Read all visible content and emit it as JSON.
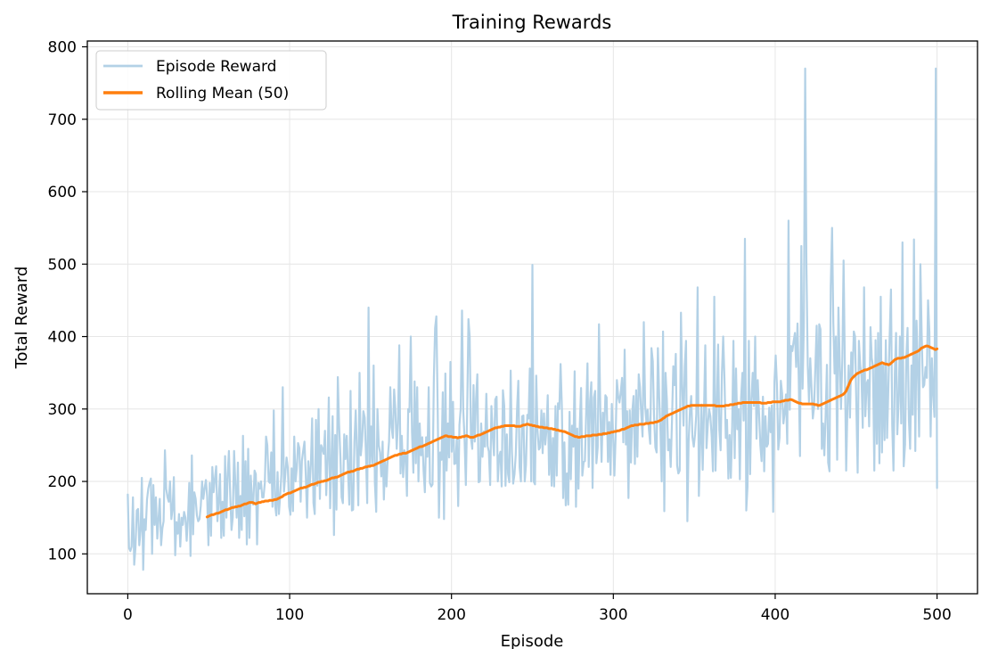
{
  "chart_data": {
    "type": "line",
    "title": "Training Rewards",
    "xlabel": "Episode",
    "ylabel": "Total Reward",
    "xlim": [
      -25,
      525
    ],
    "ylim": [
      45,
      808
    ],
    "xticks": [
      0,
      100,
      200,
      300,
      400,
      500
    ],
    "yticks": [
      100,
      200,
      300,
      400,
      500,
      600,
      700,
      800
    ],
    "grid": true,
    "legend_position": "upper-left",
    "series": [
      {
        "name": "Episode Reward",
        "color": "#b3d1e6",
        "x_range": [
          0,
          500
        ],
        "values": [
          182,
          108,
          104,
          110,
          178,
          85,
          108,
          160,
          162,
          112,
          132,
          205,
          78,
          148,
          133,
          175,
          190,
          198,
          204,
          100,
          195,
          140,
          178,
          121,
          148,
          176,
          112,
          135,
          145,
          243,
          190,
          178,
          172,
          200,
          148,
          162,
          206,
          98,
          144,
          128,
          155,
          110,
          150,
          140,
          158,
          150,
          118,
          148,
          198,
          97,
          236,
          127,
          185,
          176,
          153,
          145,
          148,
          166,
          200,
          176,
          190,
          202,
          179,
          112,
          198,
          125,
          220,
          185,
          203,
          221,
          145,
          172,
          210,
          122,
          172,
          125,
          235,
          150,
          208,
          242,
          180,
          133,
          150,
          242,
          198,
          150,
          226,
          122,
          180,
          133,
          263,
          152,
          228,
          113,
          245,
          122,
          208,
          174,
          168,
          215,
          210,
          113,
          198,
          190,
          200,
          178,
          178,
          198,
          262,
          250,
          200,
          198,
          240,
          165,
          298,
          168,
          153,
          213,
          155,
          180,
          210,
          330,
          186,
          210,
          233,
          219,
          165,
          154,
          218,
          159,
          262,
          200,
          218,
          253,
          246,
          172,
          228,
          243,
          255,
          207,
          150,
          228,
          193,
          224,
          287,
          170,
          155,
          285,
          194,
          300,
          176,
          250,
          245,
          238,
          270,
          181,
          229,
          316,
          163,
          226,
          290,
          126,
          264,
          161,
          344,
          280,
          235,
          178,
          170,
          265,
          231,
          263,
          214,
          168,
          325,
          160,
          161,
          256,
          298,
          239,
          167,
          350,
          236,
          256,
          297,
          288,
          237,
          170,
          440,
          220,
          276,
          225,
          360,
          198,
          158,
          300,
          250,
          240,
          207,
          255,
          175,
          230,
          193,
          231,
          255,
          330,
          275,
          260,
          327,
          300,
          245,
          280,
          388,
          211,
          263,
          206,
          243,
          235,
          180,
          300,
          296,
          400,
          268,
          212,
          338,
          225,
          330,
          200,
          280,
          236,
          261,
          214,
          185,
          261,
          234,
          330,
          198,
          193,
          196,
          343,
          412,
          428,
          300,
          150,
          240,
          230,
          323,
          148,
          349,
          215,
          280,
          233,
          365,
          241,
          310,
          224,
          225,
          261,
          166,
          278,
          300,
          436,
          298,
          260,
          195,
          290,
          424,
          400,
          260,
          245,
          333,
          255,
          315,
          348,
          199,
          200,
          280,
          234,
          269,
          248,
          321,
          249,
          241,
          195,
          304,
          263,
          236,
          313,
          317,
          200,
          234,
          241,
          193,
          326,
          304,
          194,
          265,
          210,
          199,
          353,
          242,
          197,
          210,
          237,
          301,
          339,
          220,
          200,
          290,
          291,
          200,
          223,
          292,
          287,
          356,
          200,
          499,
          200,
          196,
          346,
          271,
          244,
          247,
          298,
          239,
          294,
          251,
          271,
          319,
          209,
          273,
          194,
          260,
          193,
          304,
          208,
          308,
          300,
          362,
          301,
          177,
          254,
          167,
          211,
          168,
          296,
          203,
          277,
          248,
          352,
          165,
          273,
          190,
          279,
          329,
          208,
          227,
          228,
          298,
          363,
          220,
          311,
          337,
          191,
          316,
          325,
          225,
          247,
          417,
          300,
          227,
          295,
          264,
          319,
          316,
          227,
          282,
          209,
          307,
          267,
          208,
          262,
          340,
          317,
          309,
          324,
          343,
          254,
          382,
          251,
          297,
          177,
          298,
          226,
          296,
          318,
          224,
          326,
          234,
          348,
          330,
          294,
          262,
          420,
          305,
          282,
          299,
          271,
          252,
          384,
          366,
          290,
          247,
          240,
          384,
          317,
          269,
          200,
          407,
          159,
          350,
          312,
          243,
          258,
          220,
          282,
          359,
          333,
          376,
          222,
          211,
          215,
          433,
          334,
          277,
          359,
          394,
          145,
          255,
          298,
          318,
          261,
          248,
          265,
          293,
          468,
          180,
          248,
          306,
          216,
          300,
          388,
          246,
          280,
          300,
          290,
          262,
          214,
          455,
          215,
          298,
          389,
          271,
          243,
          350,
          400,
          343,
          260,
          285,
          204,
          264,
          205,
          276,
          394,
          232,
          356,
          272,
          300,
          203,
          315,
          350,
          284,
          535,
          160,
          193,
          394,
          210,
          310,
          350,
          304,
          400,
          259,
          340,
          295,
          250,
          228,
          317,
          214,
          290,
          248,
          252,
          302,
          268,
          305,
          158,
          337,
          374,
          331,
          244,
          260,
          339,
          322,
          280,
          295,
          320,
          252,
          560,
          299,
          387,
          380,
          393,
          405,
          358,
          418,
          340,
          235,
          525,
          328,
          414,
          770,
          500,
          360,
          310,
          370,
          327,
          287,
          303,
          360,
          415,
          300,
          417,
          410,
          245,
          280,
          236,
          293,
          361,
          226,
          214,
          470,
          550,
          419,
          349,
          400,
          230,
          440,
          365,
          300,
          367,
          505,
          365,
          215,
          300,
          360,
          288,
          378,
          343,
          407,
          400,
          300,
          212,
          394,
          360,
          345,
          274,
          468,
          290,
          335,
          340,
          276,
          413,
          371,
          358,
          215,
          395,
          252,
          405,
          225,
          455,
          240,
          360,
          257,
          395,
          260,
          330,
          400,
          465,
          277,
          215,
          349,
          405,
          265,
          310,
          400,
          280,
          530,
          221,
          251,
          371,
          412,
          285,
          245,
          360,
          292,
          534,
          242,
          422,
          360,
          262,
          500,
          406,
          330,
          333,
          358,
          343,
          450,
          406,
          262,
          370,
          320,
          289,
          770,
          191
        ]
      },
      {
        "name": "Rolling Mean (50)",
        "color": "#ff7f0e",
        "x_range": [
          49,
          500
        ],
        "values": [
          151,
          152,
          153,
          154,
          154,
          155,
          156,
          156,
          157,
          158,
          159,
          160,
          161,
          161,
          162,
          163,
          164,
          164,
          165,
          165,
          166,
          166,
          167,
          168,
          169,
          169,
          170,
          171,
          171,
          171,
          170,
          169,
          170,
          171,
          171,
          172,
          172,
          173,
          173,
          173,
          174,
          174,
          174,
          175,
          175,
          176,
          177,
          178,
          179,
          181,
          182,
          183,
          184,
          184,
          185,
          186,
          187,
          188,
          189,
          190,
          191,
          191,
          192,
          192,
          193,
          194,
          195,
          196,
          196,
          197,
          198,
          199,
          199,
          200,
          200,
          201,
          201,
          202,
          203,
          204,
          205,
          205,
          206,
          206,
          207,
          208,
          209,
          210,
          211,
          212,
          213,
          213,
          214,
          214,
          215,
          216,
          217,
          217,
          218,
          218,
          219,
          220,
          220,
          221,
          221,
          222,
          222,
          223,
          224,
          225,
          226,
          227,
          228,
          229,
          230,
          231,
          232,
          233,
          234,
          235,
          236,
          236,
          237,
          238,
          238,
          239,
          239,
          239,
          240,
          241,
          242,
          243,
          244,
          245,
          246,
          247,
          248,
          248,
          249,
          250,
          251,
          252,
          253,
          254,
          255,
          256,
          257,
          258,
          259,
          260,
          261,
          262,
          263,
          263,
          262,
          262,
          262,
          261,
          261,
          261,
          260,
          261,
          261,
          262,
          262,
          263,
          263,
          262,
          261,
          261,
          261,
          262,
          263,
          264,
          264,
          265,
          266,
          267,
          268,
          269,
          270,
          271,
          272,
          273,
          274,
          274,
          275,
          275,
          276,
          276,
          277,
          277,
          277,
          277,
          277,
          277,
          277,
          276,
          276,
          276,
          276,
          277,
          278,
          278,
          279,
          279,
          278,
          278,
          277,
          277,
          276,
          276,
          275,
          275,
          275,
          274,
          274,
          274,
          273,
          273,
          273,
          272,
          272,
          271,
          271,
          270,
          270,
          269,
          269,
          268,
          267,
          266,
          265,
          264,
          263,
          262,
          262,
          261,
          261,
          262,
          262,
          262,
          263,
          263,
          263,
          263,
          264,
          264,
          264,
          264,
          265,
          265,
          265,
          266,
          266,
          266,
          267,
          267,
          268,
          268,
          269,
          269,
          270,
          270,
          271,
          272,
          272,
          273,
          274,
          275,
          276,
          277,
          277,
          278,
          278,
          278,
          279,
          279,
          279,
          279,
          280,
          280,
          280,
          281,
          281,
          281,
          282,
          282,
          283,
          284,
          285,
          287,
          288,
          290,
          291,
          292,
          293,
          294,
          295,
          296,
          297,
          298,
          299,
          300,
          301,
          302,
          303,
          304,
          304,
          305,
          305,
          305,
          305,
          305,
          305,
          305,
          305,
          305,
          305,
          305,
          305,
          305,
          305,
          305,
          305,
          304,
          304,
          304,
          304,
          304,
          304,
          305,
          305,
          305,
          306,
          306,
          306,
          307,
          307,
          308,
          308,
          308,
          309,
          309,
          309,
          309,
          309,
          309,
          309,
          309,
          309,
          309,
          309,
          309,
          308,
          308,
          308,
          308,
          309,
          309,
          309,
          310,
          310,
          310,
          310,
          310,
          310,
          311,
          311,
          312,
          312,
          312,
          313,
          313,
          312,
          311,
          310,
          309,
          308,
          308,
          307,
          307,
          307,
          307,
          307,
          307,
          307,
          307,
          306,
          306,
          305,
          305,
          306,
          307,
          308,
          309,
          310,
          311,
          312,
          313,
          314,
          315,
          316,
          317,
          318,
          319,
          320,
          322,
          325,
          330,
          335,
          340,
          343,
          345,
          347,
          349,
          350,
          351,
          352,
          353,
          354,
          354,
          355,
          356,
          357,
          358,
          359,
          360,
          361,
          362,
          363,
          364,
          363,
          362,
          362,
          361,
          362,
          364,
          366,
          368,
          369,
          370,
          370,
          370,
          371,
          371,
          372,
          373,
          374,
          375,
          376,
          377,
          378,
          379,
          380,
          382,
          384,
          385,
          386,
          387,
          387,
          386,
          385,
          384,
          383,
          382,
          383
        ]
      }
    ]
  }
}
